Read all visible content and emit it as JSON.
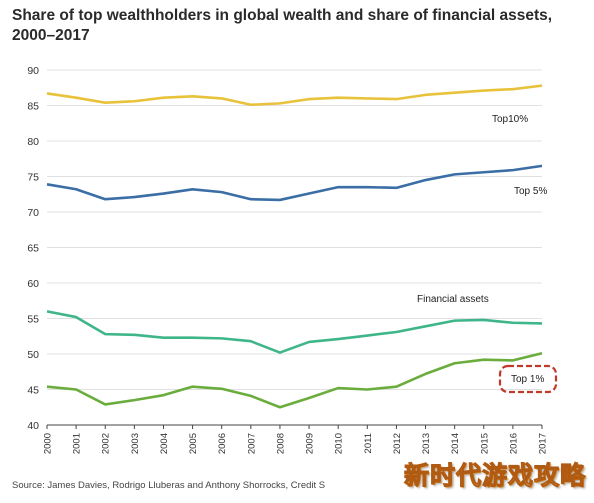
{
  "chart_data": {
    "type": "line",
    "title": "Share of top wealthholders in global wealth and share of financial assets, 2000–2017",
    "xlabel": "",
    "ylabel": "",
    "ylim": [
      40,
      90
    ],
    "yticks": [
      40,
      45,
      50,
      55,
      60,
      65,
      70,
      75,
      80,
      85,
      90
    ],
    "x": [
      2000,
      2001,
      2002,
      2003,
      2004,
      2005,
      2006,
      2007,
      2008,
      2009,
      2010,
      2011,
      2012,
      2013,
      2014,
      2015,
      2016,
      2017
    ],
    "grid": true,
    "series": [
      {
        "name": "Top10%",
        "color": "#e8c23a",
        "values": [
          86.7,
          86.1,
          85.4,
          85.6,
          86.1,
          86.3,
          86.0,
          85.1,
          85.3,
          85.9,
          86.1,
          86.0,
          85.9,
          86.5,
          86.8,
          87.1,
          87.3,
          87.8
        ]
      },
      {
        "name": "Top 5%",
        "color": "#3a6ea5",
        "values": [
          73.9,
          73.2,
          71.8,
          72.1,
          72.6,
          73.2,
          72.8,
          71.8,
          71.7,
          72.6,
          73.5,
          73.5,
          73.4,
          74.5,
          75.3,
          75.6,
          75.9,
          76.5
        ]
      },
      {
        "name": "Financial assets",
        "color": "#3fb58a",
        "values": [
          56.0,
          55.2,
          52.8,
          52.7,
          52.3,
          52.3,
          52.2,
          51.8,
          50.2,
          51.7,
          52.1,
          52.6,
          53.1,
          53.9,
          54.7,
          54.8,
          54.4,
          54.3
        ]
      },
      {
        "name": "Top 1%",
        "color": "#6aad3d",
        "values": [
          45.4,
          45.0,
          42.9,
          43.5,
          44.2,
          45.4,
          45.1,
          44.1,
          42.5,
          43.8,
          45.2,
          45.0,
          45.4,
          47.2,
          48.7,
          49.2,
          49.1,
          50.1
        ]
      }
    ]
  },
  "labels": {
    "top10": "Top10%",
    "top5": "Top 5%",
    "financial": "Financial assets",
    "top1": "Top 1%"
  },
  "source": "Source: James Davies, Rodrigo Lluberas and Anthony Shorrocks, Credit S",
  "watermark": "新时代游戏攻略",
  "colors": {
    "highlight_box": "#c0392b"
  }
}
